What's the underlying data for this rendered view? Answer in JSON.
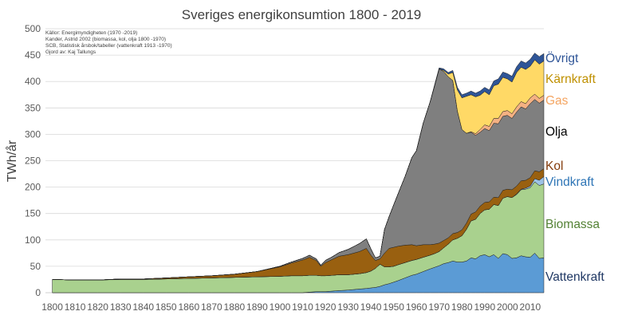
{
  "chart_data": {
    "type": "area",
    "stacked": true,
    "title": "Sveriges energikonsumtion 1800   - 2019",
    "ylabel": "TWh/år",
    "xlabel": "",
    "xlim": [
      1797,
      2016
    ],
    "ylim": [
      0,
      500
    ],
    "yticks": [
      0,
      50,
      100,
      150,
      200,
      250,
      300,
      350,
      400,
      450,
      500
    ],
    "xticks": [
      1800,
      1810,
      1820,
      1830,
      1840,
      1850,
      1860,
      1870,
      1880,
      1890,
      1900,
      1910,
      1920,
      1930,
      1940,
      1950,
      1960,
      1970,
      1980,
      1990,
      2000,
      2010
    ],
    "grid": true,
    "legend": "right, labels next to series",
    "sources": [
      "Källor: Energimyndigheten (1970  -2019)",
      "Kander, Astrid 2002 (biomassa, kol, olja 1800  -1970)",
      "SCB, Statistisk årsbok/tabeller (vattenkraft 1913    -1970)",
      "Gjord av: Kaj Tallungs"
    ],
    "x": [
      1800,
      1810,
      1820,
      1830,
      1840,
      1850,
      1860,
      1870,
      1880,
      1890,
      1900,
      1905,
      1910,
      1913,
      1916,
      1918,
      1920,
      1923,
      1926,
      1930,
      1935,
      1938,
      1940,
      1942,
      1944,
      1946,
      1948,
      1950,
      1952,
      1955,
      1958,
      1960,
      1963,
      1966,
      1968,
      1970,
      1972,
      1974,
      1976,
      1978,
      1980,
      1982,
      1984,
      1986,
      1988,
      1990,
      1992,
      1994,
      1996,
      1998,
      2000,
      2002,
      2004,
      2006,
      2008,
      2010,
      2012,
      2014,
      2016
    ],
    "series": [
      {
        "name": "Vattenkraft",
        "color": "#5b9bd5",
        "values": [
          0,
          0,
          0,
          0,
          0,
          0,
          0,
          0,
          0,
          0,
          0,
          0,
          0,
          1,
          2,
          2,
          2,
          3,
          4,
          5,
          7,
          8,
          9,
          10,
          12,
          15,
          17,
          20,
          23,
          28,
          33,
          35,
          40,
          45,
          48,
          51,
          55,
          57,
          60,
          58,
          58,
          60,
          66,
          64,
          70,
          72,
          68,
          72,
          65,
          74,
          72,
          65,
          66,
          70,
          68,
          67,
          75,
          65,
          66
        ]
      },
      {
        "name": "Biomassa",
        "color": "#a9d18e",
        "values": [
          25,
          24,
          24,
          25,
          25,
          26,
          27,
          28,
          29,
          30,
          31,
          32,
          32,
          32,
          31,
          30,
          30,
          30,
          30,
          29,
          29,
          30,
          32,
          36,
          42,
          34,
          32,
          30,
          30,
          29,
          28,
          28,
          27,
          26,
          26,
          27,
          30,
          35,
          40,
          45,
          50,
          60,
          70,
          75,
          80,
          85,
          90,
          95,
          100,
          105,
          110,
          115,
          120,
          125,
          128,
          132,
          135,
          138,
          140
        ]
      },
      {
        "name": "Vindkraft",
        "color": "#9dc3e6",
        "values": [
          0,
          0,
          0,
          0,
          0,
          0,
          0,
          0,
          0,
          0,
          0,
          0,
          0,
          0,
          0,
          0,
          0,
          0,
          0,
          0,
          0,
          0,
          0,
          0,
          0,
          0,
          0,
          0,
          0,
          0,
          0,
          0,
          0,
          0,
          0,
          0,
          0,
          0,
          0,
          0,
          0,
          0,
          0,
          0,
          0,
          0,
          0,
          0,
          0,
          0,
          0,
          0,
          1,
          1,
          2,
          3,
          6,
          10,
          14
        ]
      },
      {
        "name": "Kol",
        "color": "#996010",
        "values": [
          0,
          0,
          0,
          1,
          1,
          2,
          3,
          4,
          6,
          10,
          18,
          24,
          30,
          34,
          28,
          18,
          25,
          30,
          35,
          38,
          42,
          46,
          30,
          15,
          10,
          26,
          35,
          36,
          35,
          33,
          30,
          26,
          24,
          20,
          18,
          16,
          14,
          12,
          12,
          11,
          11,
          12,
          13,
          14,
          14,
          14,
          14,
          14,
          15,
          15,
          14,
          15,
          15,
          16,
          15,
          16,
          15,
          16,
          15
        ]
      },
      {
        "name": "Olja",
        "color": "#7f7f7f",
        "values": [
          0,
          0,
          0,
          0,
          0,
          0,
          0,
          0,
          0,
          0,
          1,
          2,
          3,
          4,
          3,
          2,
          4,
          5,
          7,
          10,
          15,
          18,
          12,
          5,
          5,
          45,
          60,
          80,
          100,
          130,
          165,
          180,
          230,
          270,
          300,
          330,
          320,
          305,
          290,
          230,
          190,
          170,
          155,
          145,
          140,
          140,
          135,
          140,
          140,
          140,
          140,
          135,
          140,
          140,
          135,
          140,
          135,
          130,
          130
        ]
      },
      {
        "name": "Gas",
        "color": "#f4b183",
        "values": [
          0,
          0,
          0,
          0,
          0,
          0,
          0,
          0,
          0,
          0,
          0,
          0,
          0,
          0,
          0,
          0,
          0,
          0,
          0,
          0,
          0,
          0,
          0,
          0,
          0,
          0,
          0,
          0,
          0,
          0,
          0,
          0,
          0,
          0,
          0,
          0,
          0,
          0,
          0,
          0,
          0,
          0,
          1,
          3,
          5,
          7,
          8,
          9,
          10,
          9,
          9,
          9,
          10,
          10,
          10,
          11,
          10,
          9,
          9
        ]
      },
      {
        "name": "Kärnkraft",
        "color": "#ffd966",
        "values": [
          0,
          0,
          0,
          0,
          0,
          0,
          0,
          0,
          0,
          0,
          0,
          0,
          0,
          0,
          0,
          0,
          0,
          0,
          0,
          0,
          0,
          0,
          0,
          0,
          0,
          0,
          0,
          0,
          0,
          0,
          0,
          0,
          0,
          0,
          0,
          0,
          2,
          5,
          15,
          40,
          60,
          70,
          70,
          70,
          65,
          63,
          60,
          62,
          65,
          65,
          60,
          60,
          65,
          65,
          65,
          60,
          65,
          65,
          65
        ]
      },
      {
        "name": "Övrigt",
        "color": "#2f5597",
        "values": [
          0,
          0,
          0,
          0,
          0,
          0,
          0,
          0,
          0,
          0,
          0,
          0,
          0,
          0,
          0,
          0,
          0,
          0,
          0,
          0,
          0,
          0,
          0,
          0,
          0,
          0,
          0,
          0,
          0,
          0,
          0,
          0,
          0,
          0,
          2,
          2,
          3,
          3,
          4,
          5,
          6,
          6,
          7,
          7,
          8,
          8,
          9,
          9,
          10,
          10,
          10,
          11,
          11,
          12,
          12,
          13,
          13,
          14,
          14
        ]
      }
    ],
    "legend_labels": {
      "ovrigt": {
        "text": "Övrigt",
        "color": "#2f5597"
      },
      "karnkraft": {
        "text": "Kärnkraft",
        "color": "#bf9000"
      },
      "gas": {
        "text": "Gas",
        "color": "#f4a460"
      },
      "olja": {
        "text": "Olja",
        "color": "#000000"
      },
      "kol": {
        "text": "Kol",
        "color": "#843c0c"
      },
      "vindkraft": {
        "text": "Vindkraft",
        "color": "#2e75b6"
      },
      "biomassa": {
        "text": "Biomassa",
        "color": "#548235"
      },
      "vattenkraft": {
        "text": "Vattenkraft",
        "color": "#203864"
      }
    }
  }
}
